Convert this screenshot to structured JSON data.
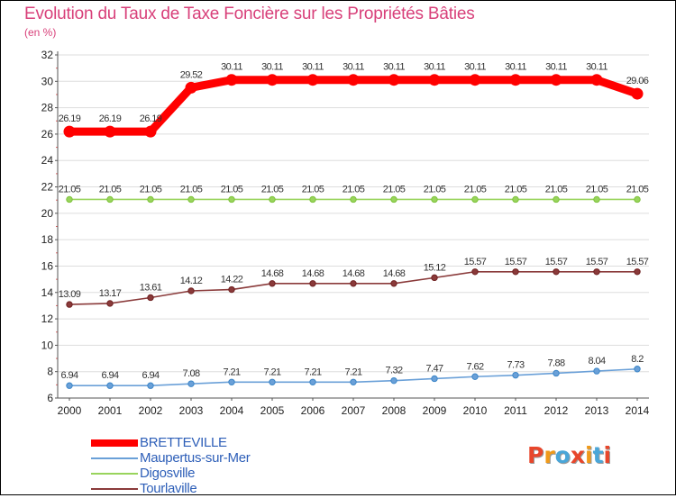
{
  "title": "Evolution du Taux de Taxe Foncière sur les Propriétés Bâties",
  "unit_label": "(en %)",
  "logo": {
    "text": "Proxiti",
    "colors": [
      "#e8462b",
      "#f09a1a",
      "#4aa6d8",
      "#e8462b",
      "#f09a1a",
      "#4aa6d8",
      "#e8462b"
    ]
  },
  "chart_data": {
    "type": "line",
    "title": "Evolution du Taux de Taxe Foncière sur les Propriétés Bâties",
    "ylabel": "(en %)",
    "xlabel": "",
    "ylim": [
      6,
      32
    ],
    "yticks": [
      6,
      8,
      10,
      12,
      14,
      16,
      18,
      20,
      22,
      24,
      26,
      28,
      30,
      32
    ],
    "x": [
      2000,
      2001,
      2002,
      2003,
      2004,
      2005,
      2006,
      2007,
      2008,
      2009,
      2010,
      2011,
      2012,
      2013,
      2014
    ],
    "grid": "horizontal",
    "series": [
      {
        "name": "BRETTEVILLE",
        "color": "#ff0000",
        "emphasis": true,
        "values": [
          26.19,
          26.19,
          26.19,
          29.52,
          30.11,
          30.11,
          30.11,
          30.11,
          30.11,
          30.11,
          30.11,
          30.11,
          30.11,
          30.11,
          29.06
        ],
        "labels": [
          "26.19",
          "26.19",
          "26.19",
          "29.52",
          "30.11",
          "30.11",
          "30.11",
          "30.11",
          "30.11",
          "30.11",
          "30.11",
          "30.11",
          "30.11",
          "30.11",
          "29.06"
        ]
      },
      {
        "name": "Maupertus-sur-Mer",
        "color": "#6aa0d8",
        "marker": "#3c86c8",
        "values": [
          6.94,
          6.94,
          6.94,
          7.08,
          7.21,
          7.21,
          7.21,
          7.21,
          7.32,
          7.47,
          7.62,
          7.73,
          7.88,
          8.04,
          8.2
        ],
        "labels": [
          "6.94",
          "6.94",
          "6.94",
          "7.08",
          "7.21",
          "7.21",
          "7.21",
          "7.21",
          "7.32",
          "7.47",
          "7.62",
          "7.73",
          "7.88",
          "8.04",
          "8.2"
        ]
      },
      {
        "name": "Digosville",
        "color": "#99d45c",
        "marker": "#7cc23a",
        "values": [
          21.05,
          21.05,
          21.05,
          21.05,
          21.05,
          21.05,
          21.05,
          21.05,
          21.05,
          21.05,
          21.05,
          21.05,
          21.05,
          21.05,
          21.05
        ],
        "labels": [
          "21.05",
          "21.05",
          "21.05",
          "21.05",
          "21.05",
          "21.05",
          "21.05",
          "21.05",
          "21.05",
          "21.05",
          "21.05",
          "21.05",
          "21.05",
          "21.05",
          "21.05"
        ]
      },
      {
        "name": "Tourlaville",
        "color": "#8a3a3a",
        "marker": "#6e2020",
        "values": [
          13.09,
          13.17,
          13.61,
          14.12,
          14.22,
          14.68,
          14.68,
          14.68,
          14.68,
          15.12,
          15.57,
          15.57,
          15.57,
          15.57,
          15.57
        ],
        "labels": [
          "13.09",
          "13.17",
          "13.61",
          "14.12",
          "14.22",
          "14.68",
          "14.68",
          "14.68",
          "14.68",
          "15.12",
          "15.57",
          "15.57",
          "15.57",
          "15.57",
          "15.57"
        ]
      }
    ]
  }
}
